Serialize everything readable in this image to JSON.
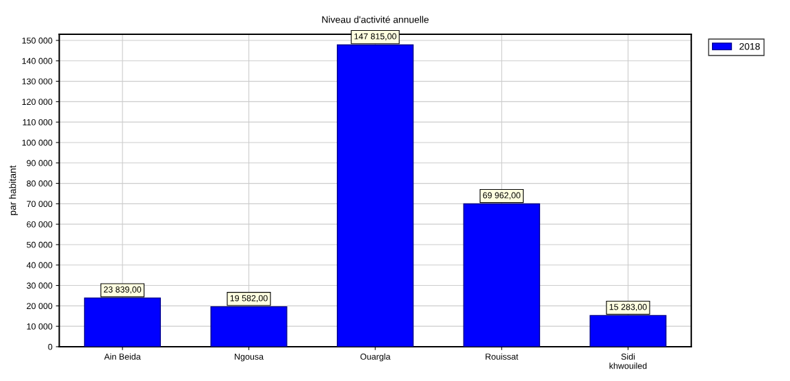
{
  "chart_data": {
    "type": "bar",
    "title": "Niveau d'activité annuelle",
    "ylabel": "par habitant",
    "categories": [
      "Ain Beida",
      "Ngousa",
      "Ouargla",
      "Rouissat",
      "Sidi\nkhwouiled"
    ],
    "series": [
      {
        "name": "2018",
        "color": "#0000ff",
        "values": [
          23839,
          19582,
          147815,
          69962,
          15283
        ],
        "value_labels": [
          "23 839,00",
          "19 582,00",
          "147 815,00",
          "69 962,00",
          "15 283,00"
        ]
      }
    ],
    "ylim": [
      0,
      153000
    ],
    "yticks": [
      0,
      {
        "value": 10000,
        "label": "10 000"
      },
      {
        "value": 20000,
        "label": "20 000"
      },
      {
        "value": 30000,
        "label": "30 000"
      },
      {
        "value": 40000,
        "label": "40 000"
      },
      {
        "value": 50000,
        "label": "50 000"
      },
      {
        "value": 60000,
        "label": "60 000"
      },
      {
        "value": 70000,
        "label": "70 000"
      },
      {
        "value": 80000,
        "label": "80 000"
      },
      {
        "value": 90000,
        "label": "90 000"
      },
      {
        "value": 100000,
        "label": "100 000"
      },
      {
        "value": 110000,
        "label": "110 000"
      },
      {
        "value": 120000,
        "label": "120 000"
      },
      {
        "value": 130000,
        "label": "130 000"
      },
      {
        "value": 140000,
        "label": "140 000"
      },
      {
        "value": 150000,
        "label": "150 000"
      }
    ],
    "grid": true,
    "legend": "top right"
  }
}
